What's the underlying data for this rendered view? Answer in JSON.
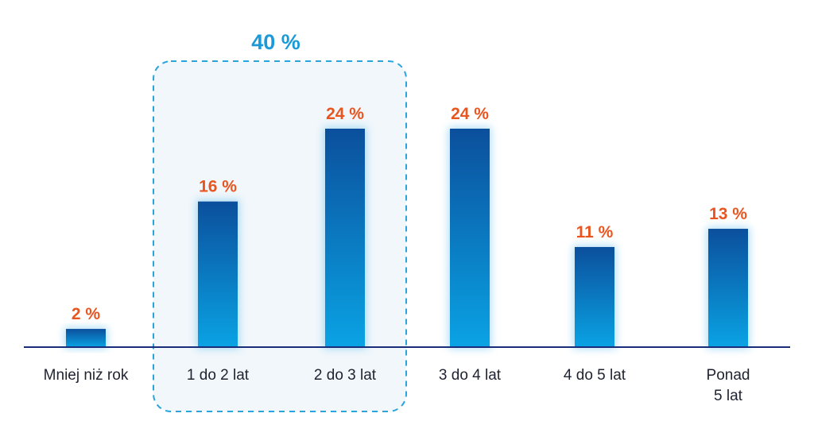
{
  "chart_data": {
    "type": "bar",
    "categories": [
      [
        "Mniej niż rok"
      ],
      [
        "1 do 2 lat"
      ],
      [
        "2 do 3 lat"
      ],
      [
        "3 do 4 lat"
      ],
      [
        "4 do 5 lat"
      ],
      [
        "Ponad",
        "5 lat"
      ]
    ],
    "values": [
      2,
      16,
      24,
      24,
      11,
      13
    ],
    "value_labels": [
      "2 %",
      "16 %",
      "24 %",
      "24 %",
      "11 %",
      "13 %"
    ],
    "ylim": [
      0,
      24
    ],
    "grid": false,
    "highlight_group": {
      "label": "40 %",
      "category_indices": [
        1,
        2
      ]
    },
    "colors": {
      "bar_top": "#0b4f9c",
      "bar_bottom": "#0aa3e4",
      "value_label": "#e8551f",
      "group_label": "#1a9ad8",
      "group_border": "#2aa4da",
      "group_fill": "#f1f7fb",
      "axis": "#1a2d7a",
      "category_label": "#1f2230"
    }
  }
}
